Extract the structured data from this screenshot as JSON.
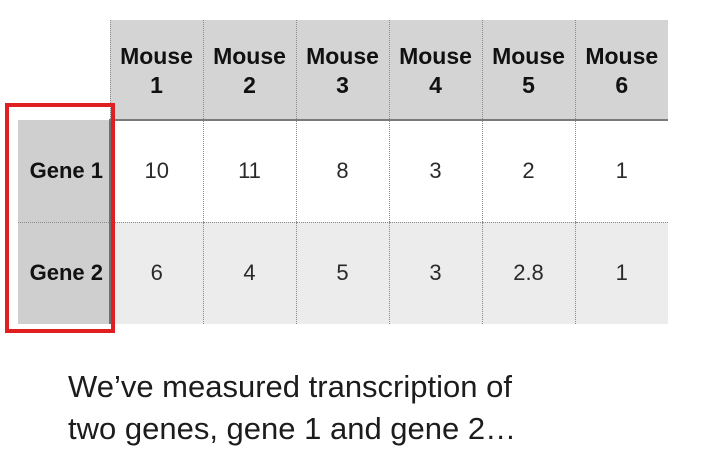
{
  "table": {
    "columns": [
      {
        "line1": "Mouse",
        "line2": "1"
      },
      {
        "line1": "Mouse",
        "line2": "2"
      },
      {
        "line1": "Mouse",
        "line2": "3"
      },
      {
        "line1": "Mouse",
        "line2": "4"
      },
      {
        "line1": "Mouse",
        "line2": "5"
      },
      {
        "line1": "Mouse",
        "line2": "6"
      }
    ],
    "rows": [
      {
        "label": "Gene 1",
        "values": [
          "10",
          "11",
          "8",
          "3",
          "2",
          "1"
        ]
      },
      {
        "label": "Gene 2",
        "values": [
          "6",
          "4",
          "5",
          "3",
          "2.8",
          "1"
        ]
      }
    ]
  },
  "highlight": {
    "color": "#e02020"
  },
  "caption": {
    "line1": "We’ve measured transcription of",
    "line2": "two genes, gene 1 and gene 2…"
  }
}
